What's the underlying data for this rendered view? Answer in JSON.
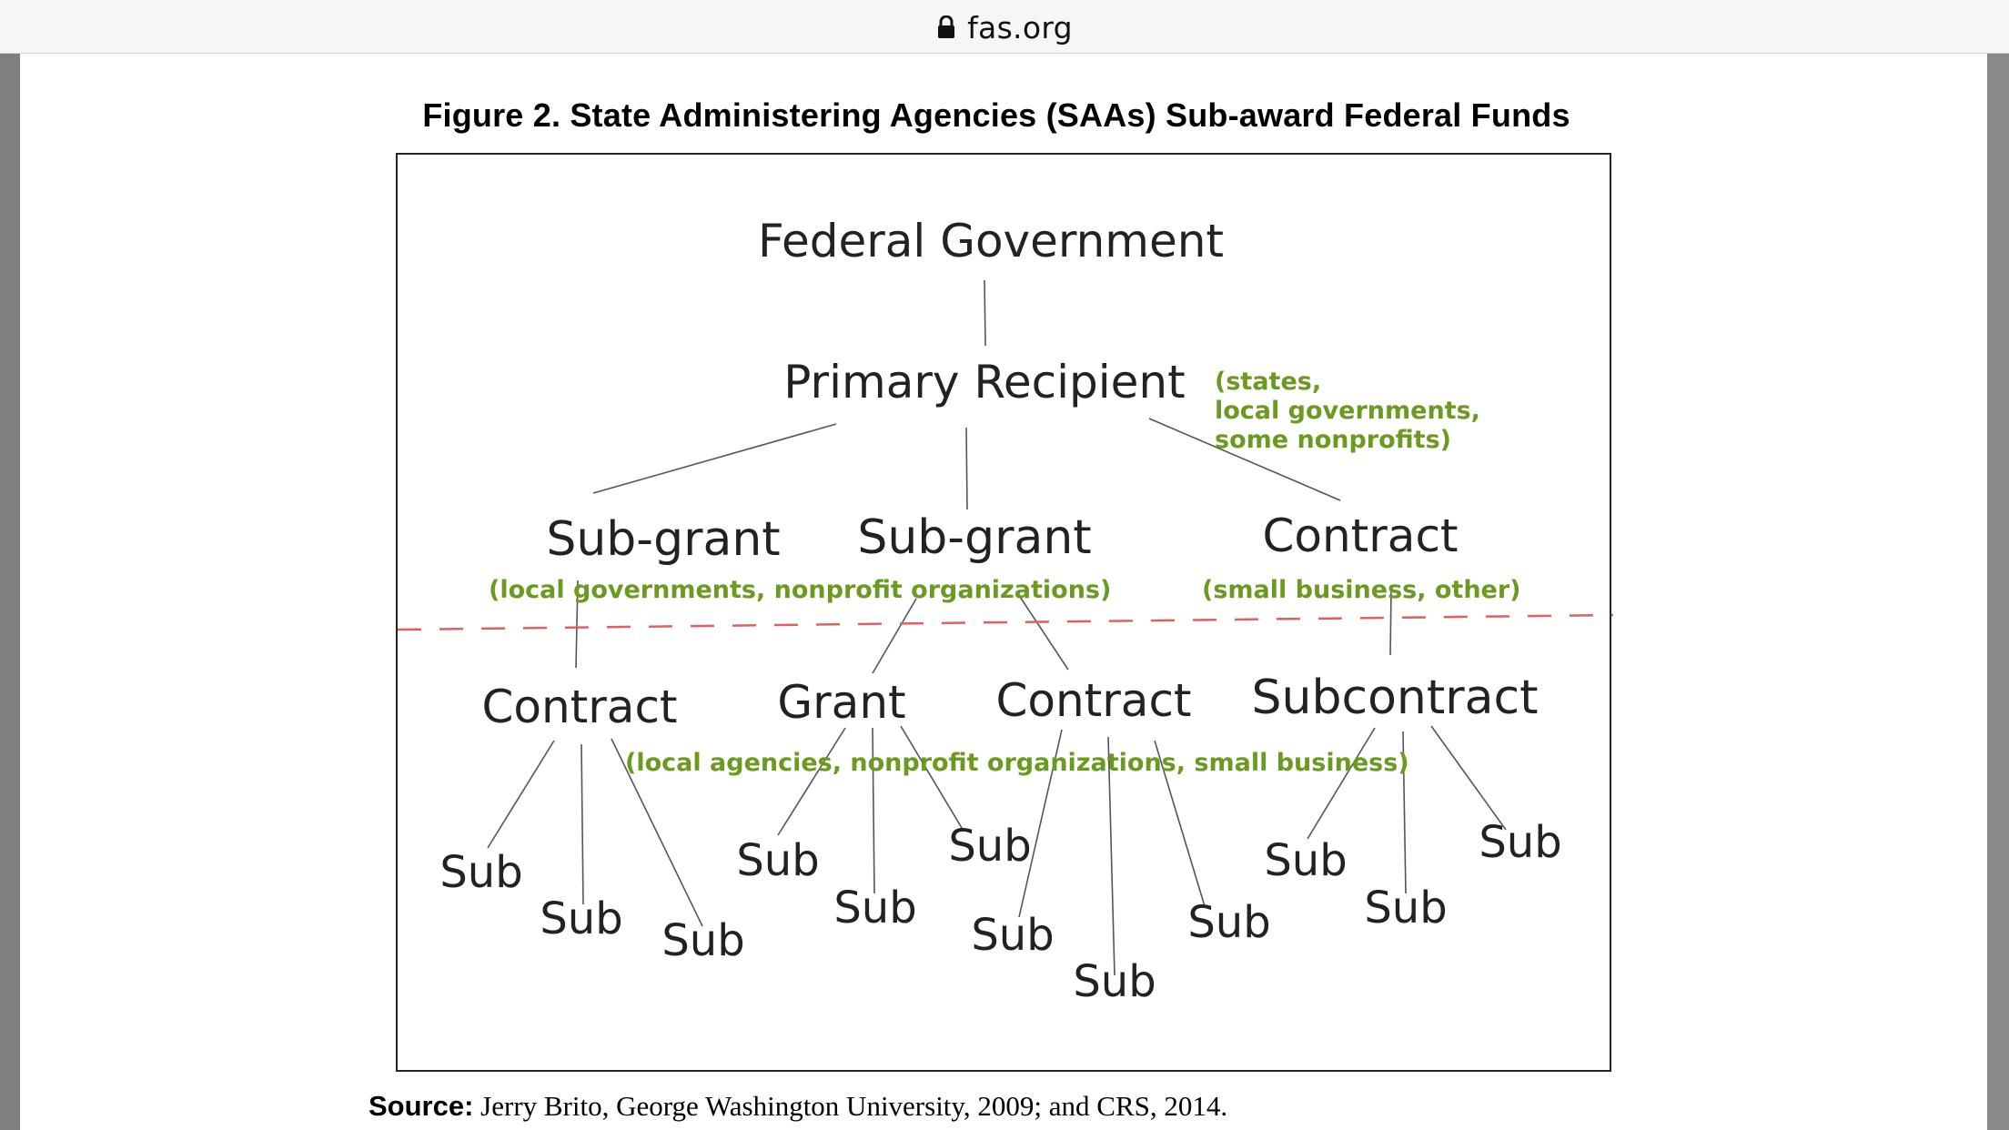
{
  "browser": {
    "url": "fas.org",
    "lock_icon": "lock-icon"
  },
  "figure": {
    "title": "Figure 2. State Administering Agencies (SAAs) Sub-award Federal Funds"
  },
  "diagram": {
    "nodes": {
      "federal": "Federal Government",
      "primary": "Primary Recipient",
      "subgrant1": "Sub-grant",
      "subgrant2": "Sub-grant",
      "contract_top": "Contract",
      "contract_left": "Contract",
      "grant": "Grant",
      "contract_mid": "Contract",
      "subcontract": "Subcontract",
      "sub": "Sub"
    },
    "notes": {
      "primary_line1": "(states,",
      "primary_line2": "local governments,",
      "primary_line3": "some nonprofits)",
      "subgrant": "(local governments, nonprofit organizations)",
      "contract": "(small business, other)",
      "lower": "(local agencies, nonprofit organizations, small business)"
    },
    "colors": {
      "note_green": "#6a9a1f",
      "divider_red": "#e06060",
      "line": "#555555",
      "text": "#222222"
    }
  },
  "source": {
    "label": "Source:",
    "text": " Jerry Brito, George Washington University, 2009; and CRS, 2014."
  }
}
